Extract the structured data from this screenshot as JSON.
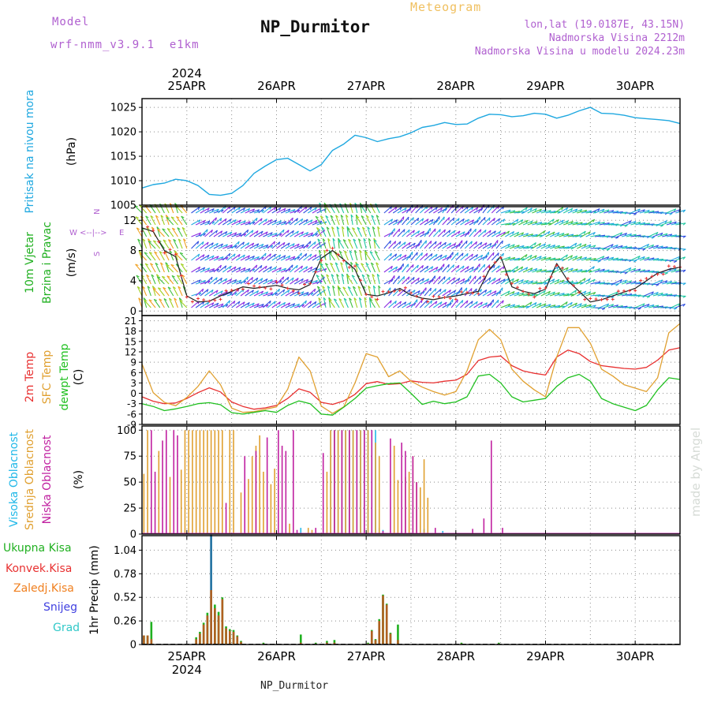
{
  "header": {
    "model_label": "Model",
    "model_name": "wrf-nmm_v3.9.1  e1km",
    "station_title": "NP_Durmitor",
    "product_title": "Meteogram",
    "coords": "lon,lat (19.0187E, 43.15N)",
    "altitude": "Nadmorska Visina 2212m",
    "model_altitude": "Nadmorska Visina u modelu 2024.23m",
    "footer_station": "NP_Durmitor",
    "watermark": "made by Angel"
  },
  "colors": {
    "pressure": "#1fa8e0",
    "temp2m": "#e83030",
    "sfc": "#e0a030",
    "dew": "#20c020",
    "cloud_high": "#20b8e8",
    "cloud_mid": "#e0a030",
    "cloud_low": "#c020a0",
    "precip_total": "#20b020",
    "precip_conv": "#e83030",
    "precip_frozen": "#f08020",
    "precip_snow": "#4040e0",
    "precip_graupel": "#30c8c8",
    "header_purple": "#b060d0",
    "header_orange": "#f0c060"
  },
  "chart_data": [
    {
      "type": "line",
      "name": "pressure",
      "ylabel_lines": [
        "Pritisak na nivou mora",
        "(hPa)"
      ],
      "yticks": [
        1005,
        1010,
        1015,
        1020,
        1025
      ],
      "ylim": [
        1005,
        1026.8
      ],
      "x_hours": [
        0,
        3,
        6,
        9,
        12,
        15,
        18,
        21,
        24,
        27,
        30,
        33,
        36,
        39,
        42,
        45,
        48,
        51,
        54,
        57,
        60,
        63,
        66,
        69,
        72,
        75,
        78,
        81,
        84,
        87,
        90,
        93,
        96,
        99,
        102,
        105,
        108,
        111,
        114,
        117,
        120,
        123,
        126,
        129,
        132,
        135,
        138,
        141,
        144
      ],
      "values": [
        1008.5,
        1009.2,
        1009.5,
        1010.3,
        1010.0,
        1009.0,
        1007.2,
        1007.0,
        1007.4,
        1009.0,
        1011.5,
        1013.0,
        1014.3,
        1014.6,
        1013.3,
        1012.0,
        1013.3,
        1016.2,
        1017.5,
        1019.3,
        1018.8,
        1018.0,
        1018.6,
        1019.0,
        1019.8,
        1020.9,
        1021.3,
        1021.9,
        1021.5,
        1021.6,
        1022.8,
        1023.6,
        1023.5,
        1023.1,
        1023.3,
        1023.8,
        1023.6,
        1022.8,
        1023.4,
        1024.3,
        1025.0,
        1023.8,
        1023.7,
        1023.4,
        1022.9,
        1022.7,
        1022.5,
        1022.3,
        1021.7
      ]
    },
    {
      "type": "line",
      "name": "wind",
      "ylabel_lines": [
        "10m Vjetar",
        "Brzina i Pravac",
        "(m/s)"
      ],
      "legend_compass": [
        "W",
        "<--|-->",
        "E",
        "N",
        "S"
      ],
      "yticks": [
        0,
        4,
        8,
        12
      ],
      "ylim": [
        -0.6,
        13.8
      ],
      "x_hours": [
        0,
        3,
        6,
        9,
        12,
        15,
        18,
        21,
        24,
        27,
        30,
        33,
        36,
        39,
        42,
        45,
        48,
        51,
        54,
        57,
        60,
        63,
        66,
        69,
        72,
        75,
        78,
        81,
        84,
        87,
        90,
        93,
        96,
        99,
        102,
        105,
        108,
        111,
        114,
        117,
        120,
        123,
        126,
        129,
        132,
        135,
        138,
        141,
        144
      ],
      "values": [
        11,
        10.5,
        8.0,
        7.2,
        2.0,
        1.2,
        1.3,
        2.0,
        2.6,
        3.2,
        3.0,
        3.2,
        3.4,
        3.0,
        2.8,
        3.5,
        7.0,
        8.0,
        6.8,
        5.5,
        2.2,
        2.0,
        2.4,
        3.0,
        2.1,
        1.7,
        1.5,
        1.8,
        2.0,
        2.3,
        2.6,
        5.5,
        7.2,
        3.2,
        2.6,
        2.3,
        2.9,
        6.3,
        4.0,
        2.6,
        1.2,
        1.5,
        2.0,
        2.5,
        3.0,
        4.0,
        5.0,
        5.5,
        5.8
      ]
    },
    {
      "type": "line",
      "name": "temperature",
      "ylabel_lines": [
        "2m Temp",
        "SFC Temp",
        "dewpt Temp",
        "(C)"
      ],
      "yticks": [
        -9,
        -6,
        -3,
        0,
        3,
        6,
        9,
        12,
        15,
        18,
        21
      ],
      "ylim": [
        -9,
        22.5
      ],
      "x_hours": [
        0,
        3,
        6,
        9,
        12,
        15,
        18,
        21,
        24,
        27,
        30,
        33,
        36,
        39,
        42,
        45,
        48,
        51,
        54,
        57,
        60,
        63,
        66,
        69,
        72,
        75,
        78,
        81,
        84,
        87,
        90,
        93,
        96,
        99,
        102,
        105,
        108,
        111,
        114,
        117,
        120,
        123,
        126,
        129,
        132,
        135,
        138,
        141,
        144
      ],
      "series": [
        {
          "name": "2m Temp",
          "color_key": "temp2m",
          "values": [
            -1,
            -2.3,
            -3,
            -2.8,
            -1.5,
            0.2,
            1.6,
            0.4,
            -2.5,
            -3.8,
            -4.6,
            -4.2,
            -3.5,
            -1.5,
            1.3,
            0.3,
            -2.6,
            -3.2,
            -2.2,
            -0.3,
            2.8,
            3.4,
            2.6,
            2.8,
            3.6,
            3.2,
            3.0,
            3.5,
            3.8,
            5.5,
            9.5,
            10.5,
            10.8,
            8.0,
            6.5,
            5.8,
            5.3,
            10.5,
            12.5,
            11.5,
            9.2,
            8.0,
            7.6,
            7.2,
            7.0,
            7.5,
            9.6,
            12.5,
            13.2
          ]
        },
        {
          "name": "SFC Temp",
          "color_key": "sfc",
          "values": [
            8.5,
            0.2,
            -2.6,
            -3.6,
            -1.2,
            2.0,
            6.5,
            2.5,
            -4.3,
            -5.5,
            -5.3,
            -4.6,
            -3.9,
            1.2,
            10.5,
            6.5,
            -3.7,
            -5.8,
            -3.9,
            3.0,
            11.5,
            10.5,
            4.8,
            6.5,
            3.5,
            1.8,
            0.5,
            -0.5,
            0.5,
            6.5,
            15.5,
            18.5,
            15.5,
            7.0,
            3.5,
            1.0,
            -1.0,
            10.5,
            19.0,
            19.0,
            14.5,
            7.0,
            5.0,
            2.5,
            1.5,
            0.5,
            4.5,
            17.5,
            20.2
          ]
        },
        {
          "name": "dewpt Temp",
          "color_key": "dew",
          "values": [
            -3,
            -3.8,
            -5,
            -4.5,
            -3.8,
            -3.0,
            -2.7,
            -3.3,
            -5.6,
            -6.0,
            -5.5,
            -5.0,
            -5.5,
            -3.5,
            -2.2,
            -3.0,
            -6.0,
            -6.3,
            -4.0,
            -1.5,
            1.5,
            2.2,
            2.8,
            3.0,
            0,
            -3.2,
            -2.3,
            -3.0,
            -2.5,
            -1.0,
            5.0,
            5.5,
            3.0,
            -1.0,
            -2.5,
            -2.0,
            -1.5,
            2.0,
            4.5,
            5.5,
            3.5,
            -1.5,
            -3.0,
            -4.0,
            -5.0,
            -3.5,
            1.0,
            4.5,
            4.0
          ]
        }
      ]
    },
    {
      "type": "bar",
      "name": "cloud",
      "ylabel_lines": [
        "Visoka Oblacnost",
        "Srednja Oblacnost",
        "Niska Oblacnost",
        "(%)"
      ],
      "yticks": [
        0,
        25,
        50,
        75,
        100
      ],
      "ylim": [
        0,
        104
      ],
      "series": [
        {
          "name": "Visoka Oblacnost",
          "color_key": "cloud_high",
          "bars": [
            [
              42,
              6
            ],
            [
              50,
              100
            ],
            [
              51,
              100
            ],
            [
              52,
              100
            ],
            [
              53,
              100
            ],
            [
              54,
              100
            ],
            [
              55,
              100
            ],
            [
              56,
              100
            ],
            [
              57,
              100
            ],
            [
              58,
              100
            ],
            [
              59,
              100
            ],
            [
              60,
              100
            ],
            [
              61,
              100
            ],
            [
              62,
              100
            ],
            [
              63,
              6
            ],
            [
              64,
              4
            ],
            [
              75,
              5
            ],
            [
              80,
              3
            ]
          ]
        },
        {
          "name": "Srednja Oblacnost",
          "color_key": "cloud_mid",
          "bars": [
            [
              0,
              58
            ],
            [
              1,
              100
            ],
            [
              4,
              80
            ],
            [
              7,
              55
            ],
            [
              10,
              62
            ],
            [
              11,
              100
            ],
            [
              12,
              100
            ],
            [
              13,
              100
            ],
            [
              14,
              100
            ],
            [
              15,
              100
            ],
            [
              16,
              100
            ],
            [
              17,
              100
            ],
            [
              18,
              100
            ],
            [
              19,
              100
            ],
            [
              20,
              100
            ],
            [
              21,
              100
            ],
            [
              23,
              100
            ],
            [
              24,
              100
            ],
            [
              26,
              40
            ],
            [
              28,
              53
            ],
            [
              29,
              75
            ],
            [
              30,
              85
            ],
            [
              31,
              95
            ],
            [
              32,
              60
            ],
            [
              34,
              48
            ],
            [
              35,
              63
            ],
            [
              39,
              10
            ],
            [
              44,
              6
            ],
            [
              45,
              4
            ],
            [
              49,
              60
            ],
            [
              50,
              100
            ],
            [
              51,
              100
            ],
            [
              52,
              100
            ],
            [
              53,
              100
            ],
            [
              54,
              100
            ],
            [
              55,
              100
            ],
            [
              56,
              100
            ],
            [
              57,
              100
            ],
            [
              58,
              100
            ],
            [
              59,
              100
            ],
            [
              60,
              100
            ],
            [
              62,
              88
            ],
            [
              63,
              75
            ],
            [
              67,
              85
            ],
            [
              68,
              52
            ],
            [
              70,
              55
            ],
            [
              71,
              60
            ],
            [
              72,
              75
            ],
            [
              73,
              50
            ],
            [
              74,
              45
            ],
            [
              75,
              72
            ],
            [
              76,
              35
            ]
          ]
        },
        {
          "name": "Niska Oblacnost",
          "color_key": "cloud_low",
          "bars": [
            [
              2,
              100
            ],
            [
              3,
              60
            ],
            [
              5,
              90
            ],
            [
              6,
              100
            ],
            [
              8,
              100
            ],
            [
              9,
              95
            ],
            [
              22,
              30
            ],
            [
              27,
              75
            ],
            [
              30,
              80
            ],
            [
              33,
              93
            ],
            [
              36,
              100
            ],
            [
              37,
              85
            ],
            [
              38,
              80
            ],
            [
              40,
              100
            ],
            [
              41,
              4
            ],
            [
              46,
              6
            ],
            [
              48,
              78
            ],
            [
              51,
              100
            ],
            [
              53,
              100
            ],
            [
              55,
              100
            ],
            [
              57,
              100
            ],
            [
              59,
              100
            ],
            [
              61,
              100
            ],
            [
              64,
              3
            ],
            [
              66,
              92
            ],
            [
              69,
              88
            ],
            [
              70,
              80
            ],
            [
              72,
              75
            ],
            [
              73,
              50
            ],
            [
              78,
              6
            ],
            [
              88,
              5
            ],
            [
              91,
              15
            ],
            [
              93,
              90
            ],
            [
              96,
              6
            ]
          ]
        }
      ]
    },
    {
      "type": "bar",
      "name": "precipitation",
      "ylabel_lines": [
        "Ukupna Kisa",
        "Konvek.Kisa",
        "Zaledj.Kisa",
        "Snijeg",
        "Grad",
        "1hr Precip (mm)"
      ],
      "yticks": [
        0,
        0.26,
        0.52,
        0.78,
        1.04
      ],
      "ylim": [
        0,
        1.2
      ],
      "bars": [
        {
          "h": 0,
          "total": 0.1,
          "conv": 0.1
        },
        {
          "h": 1,
          "total": 0.1,
          "conv": 0.1
        },
        {
          "h": 2,
          "total": 0.25,
          "conv": 0.06
        },
        {
          "h": 14,
          "total": 0.08,
          "conv": 0.06
        },
        {
          "h": 15,
          "total": 0.14,
          "conv": 0.12
        },
        {
          "h": 16,
          "total": 0.24,
          "conv": 0.22
        },
        {
          "h": 17,
          "total": 0.35,
          "conv": 0.32
        },
        {
          "h": 18,
          "total": 1.21,
          "conv": 0.6
        },
        {
          "h": 19,
          "total": 0.44,
          "conv": 0.4
        },
        {
          "h": 20,
          "total": 0.36,
          "conv": 0.32
        },
        {
          "h": 21,
          "total": 0.52,
          "conv": 0.5
        },
        {
          "h": 22,
          "total": 0.2,
          "conv": 0.18
        },
        {
          "h": 23,
          "total": 0.17,
          "conv": 0.15
        },
        {
          "h": 24,
          "total": 0.16,
          "conv": 0.14
        },
        {
          "h": 25,
          "total": 0.1,
          "conv": 0.09
        },
        {
          "h": 26,
          "total": 0.04,
          "conv": 0.03
        },
        {
          "h": 32,
          "total": 0.02,
          "conv": 0.01
        },
        {
          "h": 42,
          "total": 0.11,
          "conv": 0.02
        },
        {
          "h": 46,
          "total": 0.02,
          "conv": 0.01
        },
        {
          "h": 49,
          "total": 0.04,
          "conv": 0.02
        },
        {
          "h": 51,
          "total": 0.05,
          "conv": 0.02
        },
        {
          "h": 60,
          "total": 0.02,
          "conv": 0.01
        },
        {
          "h": 61,
          "total": 0.16,
          "conv": 0.15
        },
        {
          "h": 62,
          "total": 0.06,
          "conv": 0.05
        },
        {
          "h": 63,
          "total": 0.28,
          "conv": 0.26
        },
        {
          "h": 64,
          "total": 0.55,
          "conv": 0.54
        },
        {
          "h": 65,
          "total": 0.45,
          "conv": 0.44
        },
        {
          "h": 66,
          "total": 0.13,
          "conv": 0.12
        },
        {
          "h": 68,
          "total": 0.22,
          "conv": 0.05
        },
        {
          "h": 85,
          "total": 0.02,
          "conv": 0.01
        },
        {
          "h": 95,
          "total": 0.02,
          "conv": 0.01
        }
      ]
    }
  ],
  "time_axis": {
    "year_top": "2024",
    "year_bottom": "2024",
    "hours_total": 144,
    "day_labels": [
      {
        "h": 12,
        "label": "25APR"
      },
      {
        "h": 36,
        "label": "26APR"
      },
      {
        "h": 60,
        "label": "27APR"
      },
      {
        "h": 84,
        "label": "28APR"
      },
      {
        "h": 108,
        "label": "29APR"
      },
      {
        "h": 132,
        "label": "30APR"
      }
    ]
  }
}
